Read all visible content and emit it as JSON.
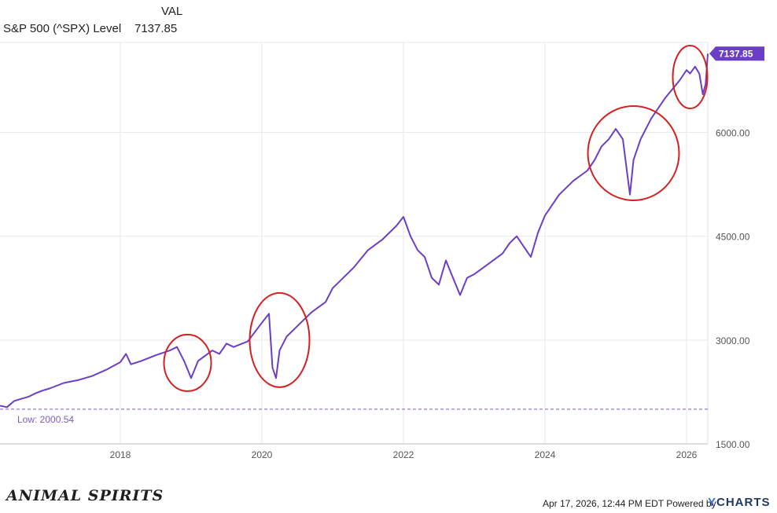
{
  "header": {
    "column_label": "VAL",
    "series_name": "S&P 500 (^SPX) Level",
    "series_value": "7137.85"
  },
  "footer": {
    "brand": "ANIMAL SPIRITS",
    "timestamp": "Apr 17, 2026, 12:44 PM EDT Powered by",
    "provider_y": "Y",
    "provider_rest": "CHARTS"
  },
  "colors": {
    "line": "#6a3fc6",
    "circle": "#d42020",
    "grid": "#e9e9e9",
    "low_line": "#7d5bc4",
    "last_value_bg": "#6a3fc6"
  },
  "chart_data": {
    "type": "line",
    "x_ticks": [
      "2018",
      "2020",
      "2022",
      "2024",
      "2026"
    ],
    "y_ticks": [
      "1500.00",
      "3000.00",
      "4500.00",
      "6000.00"
    ],
    "ylim": [
      1500,
      7300
    ],
    "xlim": [
      2016.3,
      2026.3
    ],
    "last_value_label": "7137.85",
    "low_label": "Low: 2000.54",
    "low_value": 2000.54,
    "series": [
      {
        "x": [
          2016.3,
          2016.4,
          2016.5,
          2016.6,
          2016.7,
          2016.8,
          2016.9,
          2017.0,
          2017.2,
          2017.4,
          2017.6,
          2017.8,
          2018.0,
          2018.08,
          2018.15,
          2018.3,
          2018.5,
          2018.7,
          2018.8,
          2018.9,
          2019.0,
          2019.1,
          2019.3,
          2019.4,
          2019.5,
          2019.6,
          2019.8,
          2020.0,
          2020.1,
          2020.15,
          2020.2,
          2020.25,
          2020.35,
          2020.5,
          2020.7,
          2020.9,
          2021.0,
          2021.3,
          2021.5,
          2021.7,
          2021.9,
          2022.0,
          2022.1,
          2022.2,
          2022.3,
          2022.4,
          2022.5,
          2022.6,
          2022.7,
          2022.8,
          2022.9,
          2023.0,
          2023.2,
          2023.4,
          2023.5,
          2023.6,
          2023.7,
          2023.8,
          2023.9,
          2024.0,
          2024.2,
          2024.4,
          2024.6,
          2024.7,
          2024.8,
          2024.9,
          2025.0,
          2025.1,
          2025.15,
          2025.2,
          2025.25,
          2025.35,
          2025.5,
          2025.7,
          2025.9,
          2026.0,
          2026.05,
          2026.12,
          2026.18,
          2026.23,
          2026.27,
          2026.3
        ],
        "values": [
          2050,
          2030,
          2120,
          2150,
          2180,
          2230,
          2270,
          2300,
          2380,
          2420,
          2480,
          2570,
          2680,
          2800,
          2650,
          2700,
          2780,
          2850,
          2900,
          2700,
          2450,
          2700,
          2850,
          2800,
          2950,
          2900,
          2980,
          3250,
          3380,
          2600,
          2450,
          2850,
          3050,
          3200,
          3400,
          3550,
          3750,
          4050,
          4300,
          4450,
          4650,
          4780,
          4500,
          4300,
          4200,
          3900,
          3800,
          4150,
          3900,
          3650,
          3900,
          3950,
          4100,
          4250,
          4400,
          4500,
          4350,
          4200,
          4550,
          4800,
          5100,
          5300,
          5450,
          5600,
          5800,
          5900,
          6050,
          5900,
          5500,
          5100,
          5600,
          5900,
          6200,
          6500,
          6750,
          6900,
          6850,
          6950,
          6850,
          6550,
          6700,
          7137.85
        ]
      }
    ],
    "annotations": [
      {
        "type": "circle",
        "x": 2018.95,
        "y": 2670
      },
      {
        "type": "circle",
        "x": 2020.25,
        "y": 3000
      },
      {
        "type": "circle",
        "x": 2025.25,
        "y": 5700
      },
      {
        "type": "circle",
        "x": 2026.05,
        "y": 6800
      }
    ]
  }
}
